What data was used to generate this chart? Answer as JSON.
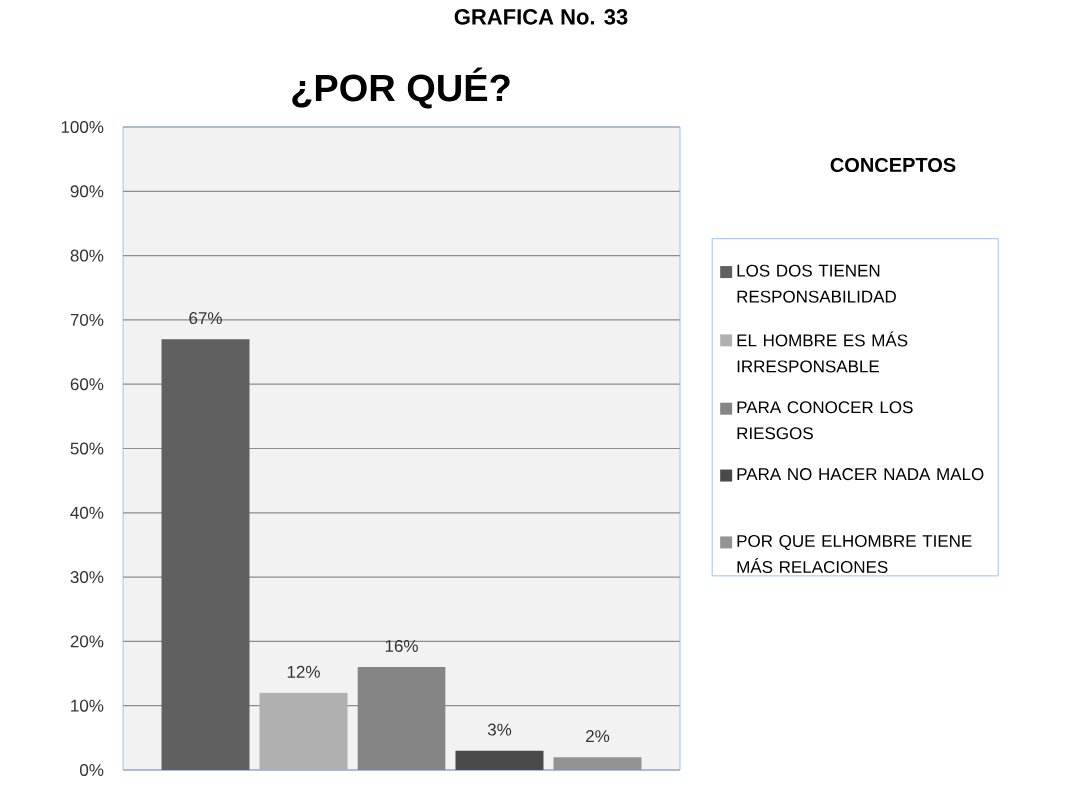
{
  "chart_data": {
    "type": "bar",
    "title": "¿POR QUÉ?",
    "annotations": [
      "GRAFICA No. 33"
    ],
    "legend_title": "CONCEPTOS",
    "categories": [
      null
    ],
    "series": [
      {
        "name": "LOS DOS TIENEN RESPONSABILIDAD",
        "color": "#606060",
        "values": [
          67
        ],
        "value_labels": [
          "67%"
        ]
      },
      {
        "name": "EL HOMBRE ES MÁS IRRESPONSABLE",
        "color": "#b0b0b0",
        "values": [
          12
        ],
        "value_labels": [
          "12%"
        ]
      },
      {
        "name": "PARA CONOCER LOS RIESGOS",
        "color": "#858585",
        "values": [
          16
        ],
        "value_labels": [
          "16%"
        ]
      },
      {
        "name": "PARA NO HACER NADA MALO",
        "color": "#4a4a4a",
        "values": [
          3
        ],
        "value_labels": [
          "3%"
        ]
      },
      {
        "name": "POR QUE ELHOMBRE TIENE MÁS RELACIONES",
        "color": "#939393",
        "values": [
          2
        ],
        "value_labels": [
          "2%"
        ]
      }
    ],
    "ylim": [
      0,
      100
    ],
    "yticks": [
      {
        "value": 0,
        "label": "0%"
      },
      {
        "value": 10,
        "label": "10%"
      },
      {
        "value": 20,
        "label": "20%"
      },
      {
        "value": 30,
        "label": "30%"
      },
      {
        "value": 40,
        "label": "40%"
      },
      {
        "value": 50,
        "label": "50%"
      },
      {
        "value": 60,
        "label": "60%"
      },
      {
        "value": 70,
        "label": "70%"
      },
      {
        "value": 80,
        "label": "80%"
      },
      {
        "value": 90,
        "label": "90%"
      },
      {
        "value": 100,
        "label": "100%"
      }
    ],
    "grid": "y",
    "legend": "right"
  }
}
